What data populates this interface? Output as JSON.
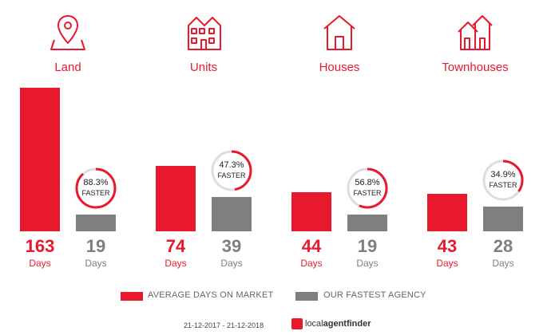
{
  "chart_data": {
    "type": "bar",
    "categories": [
      "Land",
      "Units",
      "Houses",
      "Townhouses"
    ],
    "series": [
      {
        "name": "AVERAGE DAYS ON MARKET",
        "values": [
          163,
          74,
          44,
          43
        ]
      },
      {
        "name": "OUR FASTEST AGENCY",
        "values": [
          19,
          39,
          19,
          28
        ]
      }
    ],
    "faster": [
      "88.3%",
      "47.3%",
      "56.8%",
      "34.9%"
    ],
    "faster_fraction": [
      0.883,
      0.473,
      0.568,
      0.349
    ],
    "faster_label": "FASTER",
    "unit_label": "Days",
    "ylim": [
      0,
      163
    ]
  },
  "colors": {
    "avg": "#e8192c",
    "fast": "#7f7f7f",
    "ring_track": "#dddddd"
  },
  "icons": [
    "land-pin-icon",
    "units-building-icon",
    "house-icon",
    "townhouses-icon"
  ],
  "legend": {
    "avg_label": "AVERAGE DAYS ON MARKET",
    "fast_label": "OUR FASTEST AGENCY"
  },
  "footer": {
    "date_range": "21-12-2017 - 21-12-2018",
    "brand_local": "local",
    "brand_agent": "agentfinder"
  }
}
